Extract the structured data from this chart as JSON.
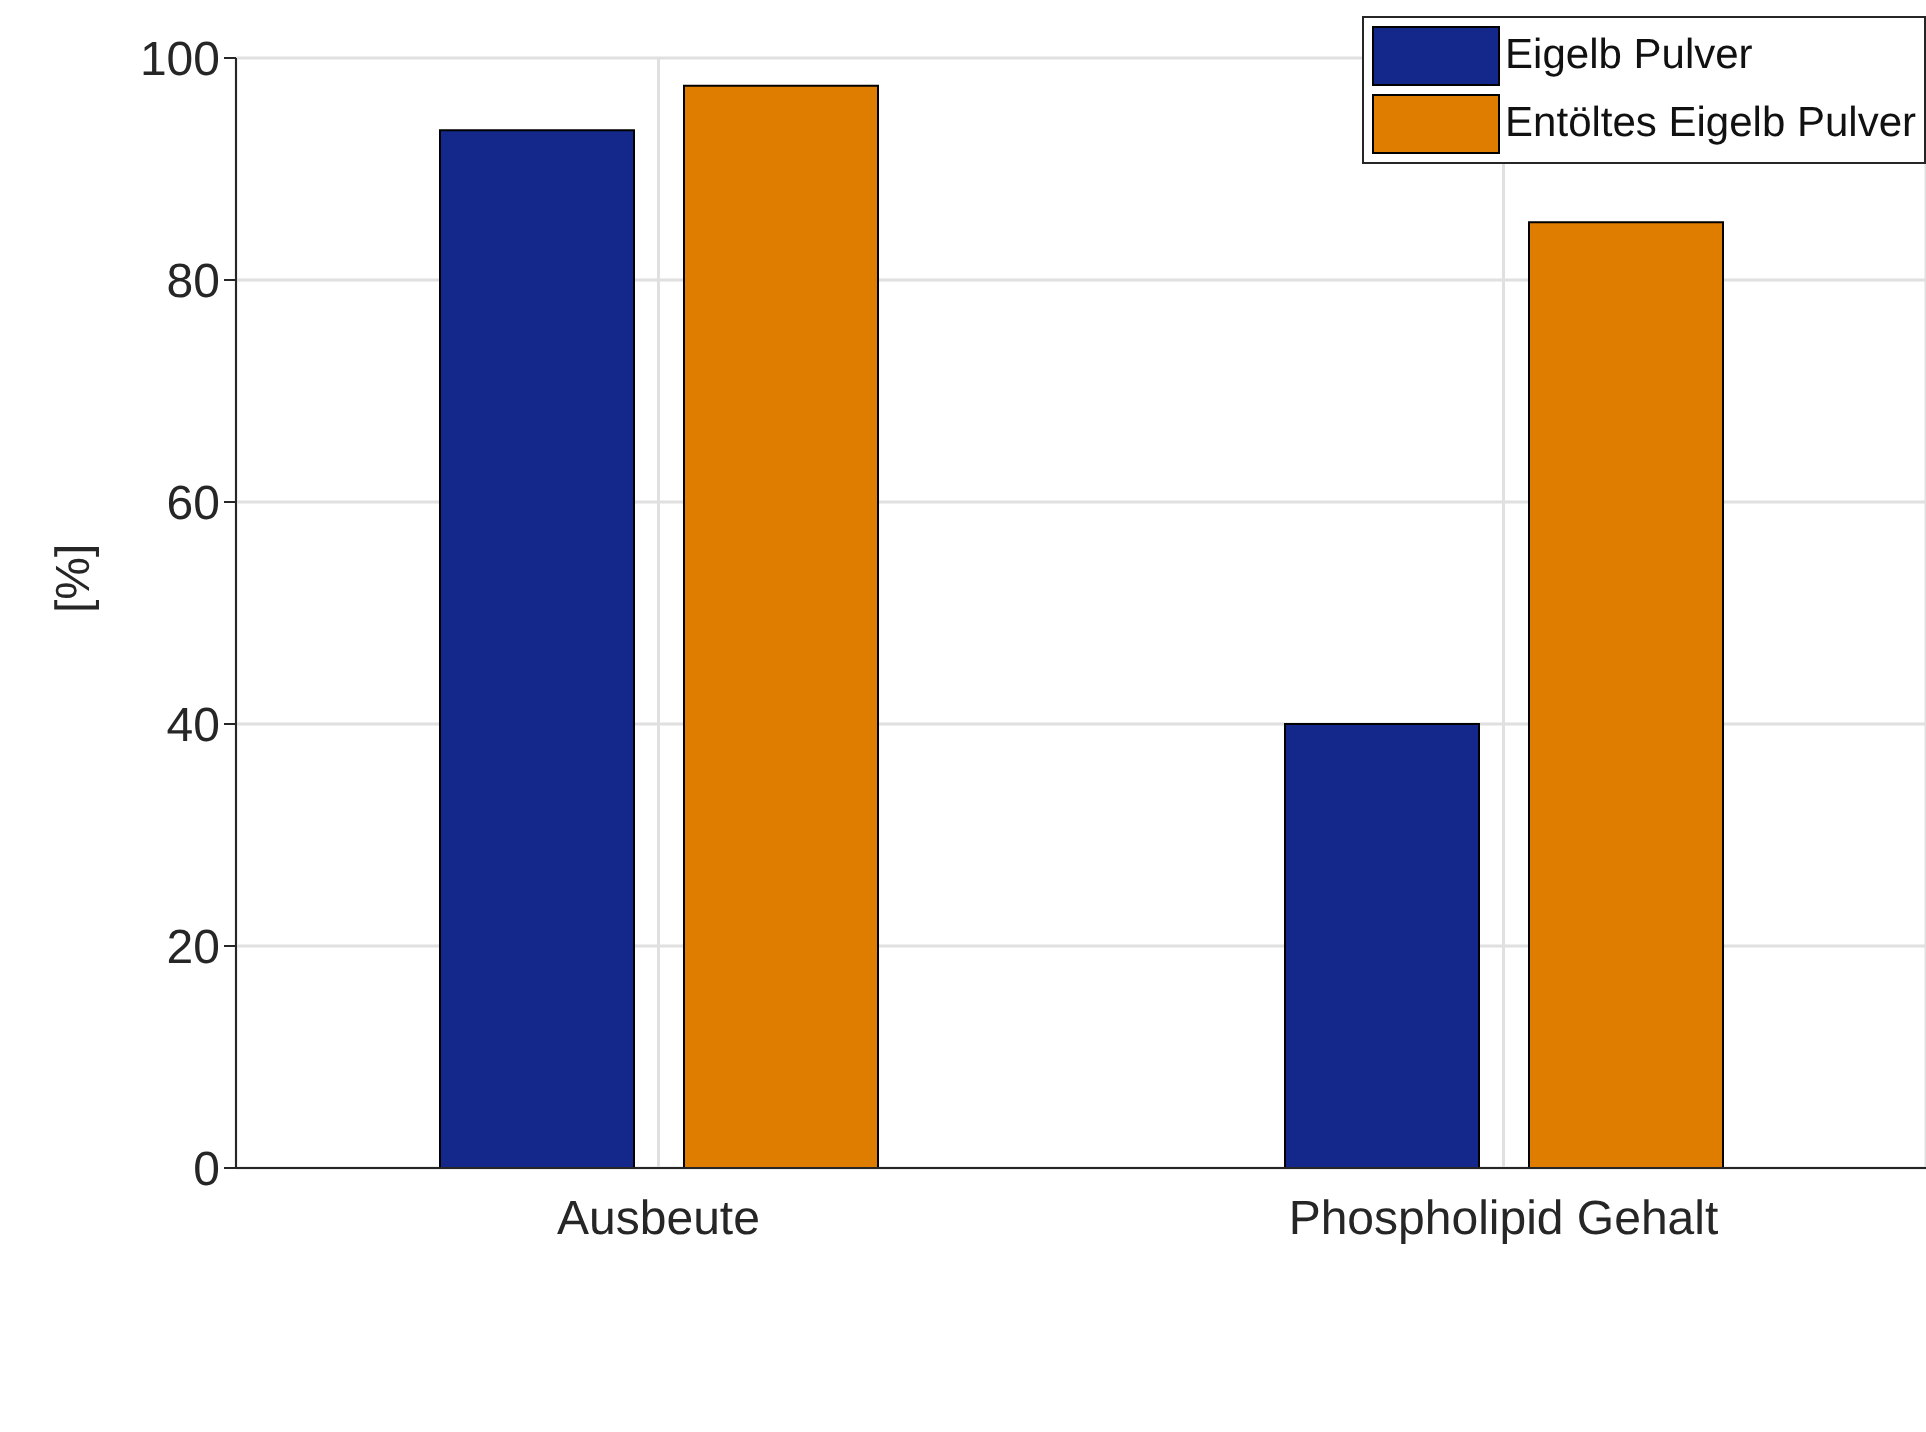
{
  "chart_data": {
    "type": "bar",
    "ylabel": "[%]",
    "categories": [
      "Ausbeute",
      "Phospholipid Gehalt"
    ],
    "series": [
      {
        "name": "Eigelb Pulver",
        "color": "#13288a",
        "values": [
          93.5,
          40
        ]
      },
      {
        "name": "Entöltes Eigelb Pulver",
        "color": "#df7d00",
        "values": [
          97.5,
          85.2
        ]
      }
    ],
    "ylim": [
      0,
      100
    ],
    "yticks": [
      0,
      20,
      40,
      60,
      80,
      100
    ],
    "grid": true,
    "legend": "top right"
  }
}
